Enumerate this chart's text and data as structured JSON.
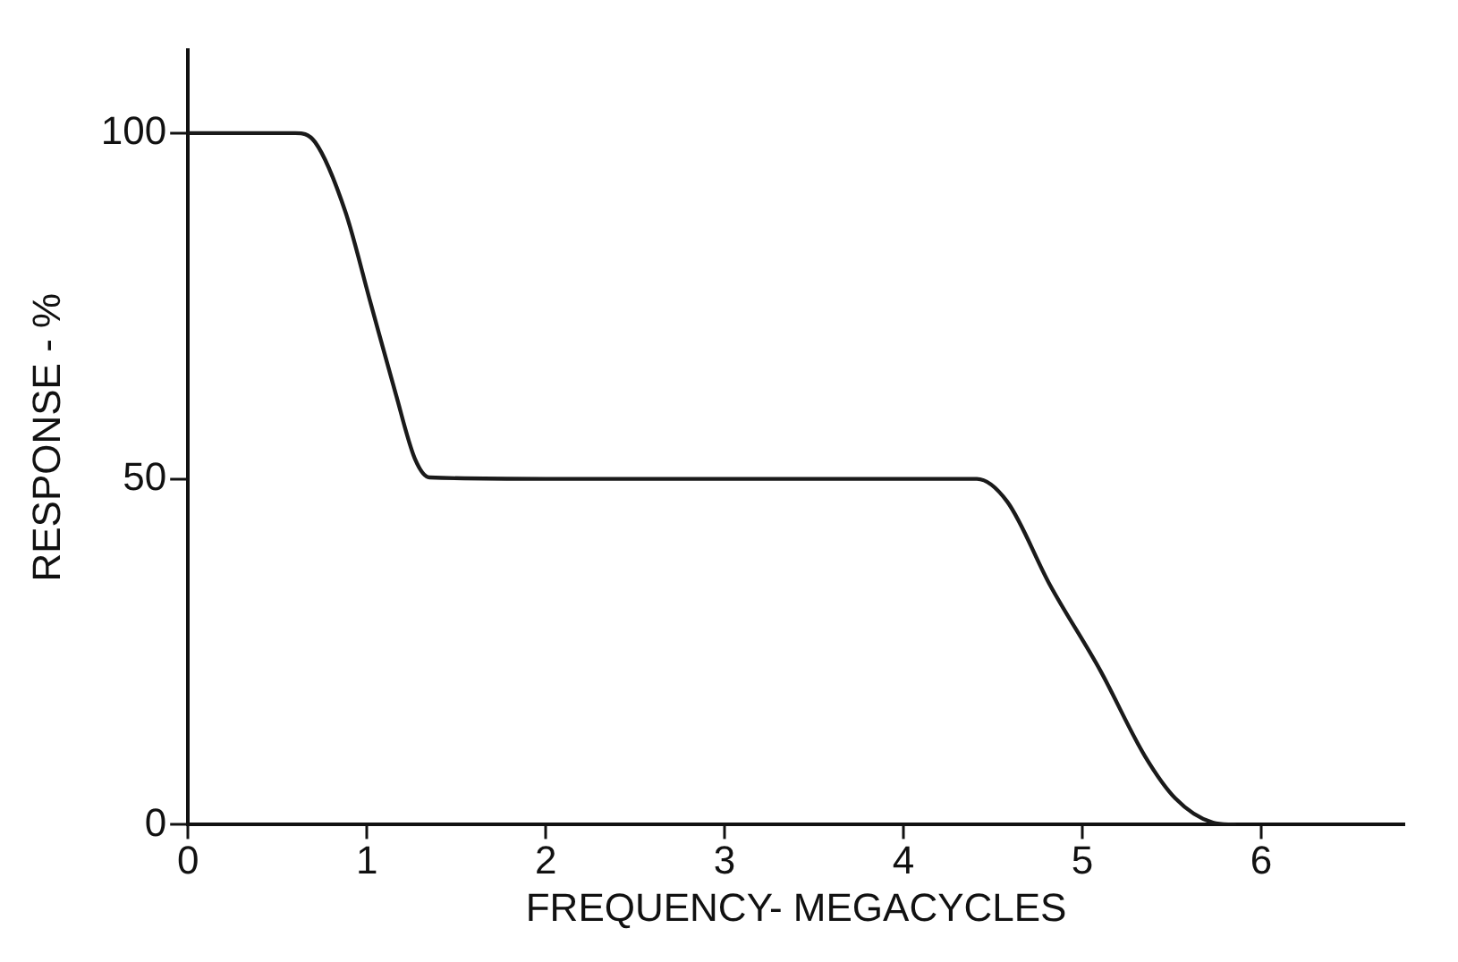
{
  "chart_data": {
    "type": "line",
    "xlabel": "FREQUENCY- MEGACYCLES",
    "ylabel": "RESPONSE - %",
    "x": [
      0,
      0.6,
      0.71,
      0.88,
      1.02,
      1.16,
      1.27,
      1.35,
      2,
      3,
      4,
      4.41,
      4.58,
      4.82,
      5.1,
      5.35,
      5.52,
      5.73,
      5.85
    ],
    "series": [
      {
        "color": "#1a1a1a",
        "values": [
          100,
          100,
          98.7,
          88.6,
          75.5,
          62.4,
          52.8,
          50.2,
          50,
          50,
          50,
          50,
          46.7,
          34.6,
          22.3,
          9.9,
          3.8,
          0.3,
          0
        ]
      }
    ],
    "xlim": [
      0,
      6.8
    ],
    "ylim": [
      0,
      112
    ],
    "xticks": [
      0,
      1,
      2,
      3,
      4,
      5,
      6
    ],
    "yticks": [
      0,
      50,
      100
    ],
    "grid": false,
    "legend": false,
    "marker": "none",
    "line_style": "solid"
  }
}
